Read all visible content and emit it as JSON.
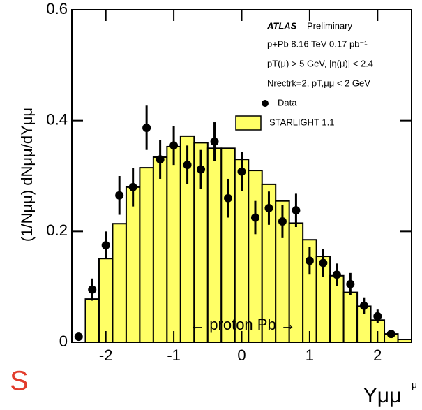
{
  "chart_data": {
    "type": "histogram",
    "y_label": "(1/Nμμ) dNμμ/dYμμ",
    "x_label": "Yμμ",
    "x_label_fragment": "μ",
    "logo_fragment": "S",
    "annotations": [
      "ATLAS",
      "Preliminary",
      "p+Pb 8.16 TeV 0.17 pb⁻¹",
      "pT(μ) > 5 GeV, |η(μ)| < 2.4",
      "Nrectrk=2, pT,μμ < 2 GeV",
      "← proton   Pb →"
    ],
    "bins": [
      -2.5,
      -2.3,
      -2.1,
      -1.9,
      -1.7,
      -1.5,
      -1.3,
      -1.1,
      -0.9,
      -0.7,
      -0.5,
      -0.3,
      -0.1,
      0.1,
      0.3,
      0.5,
      0.7,
      0.9,
      1.1,
      1.3,
      1.5,
      1.7,
      1.9,
      2.1,
      2.3,
      2.5
    ],
    "series": [
      {
        "name": "STARLIGHT 1.1",
        "type": "histogram",
        "color": "#ffff66",
        "values": [
          0,
          0.078,
          0.151,
          0.214,
          0.28,
          0.315,
          0.334,
          0.353,
          0.372,
          0.36,
          0.35,
          0.35,
          0.33,
          0.31,
          0.285,
          0.255,
          0.215,
          0.185,
          0.155,
          0.12,
          0.09,
          0.065,
          0.04,
          0.015,
          0.005
        ]
      },
      {
        "name": "Data",
        "type": "scatter",
        "color": "#000000",
        "x": [
          -2.4,
          -2.2,
          -2.0,
          -1.8,
          -1.6,
          -1.4,
          -1.2,
          -1.0,
          -0.8,
          -0.6,
          -0.4,
          -0.2,
          0.0,
          0.2,
          0.4,
          0.6,
          0.8,
          1.0,
          1.2,
          1.4,
          1.6,
          1.8,
          2.0,
          2.2
        ],
        "values": [
          0.01,
          0.095,
          0.175,
          0.265,
          0.28,
          0.387,
          0.33,
          0.355,
          0.32,
          0.312,
          0.362,
          0.26,
          0.308,
          0.225,
          0.242,
          0.218,
          0.238,
          0.147,
          0.143,
          0.122,
          0.105,
          0.066,
          0.047,
          0.015
        ],
        "errors": [
          0.005,
          0.02,
          0.025,
          0.035,
          0.035,
          0.04,
          0.035,
          0.035,
          0.035,
          0.035,
          0.035,
          0.035,
          0.035,
          0.03,
          0.03,
          0.03,
          0.03,
          0.025,
          0.025,
          0.02,
          0.02,
          0.015,
          0.012,
          0.007
        ]
      }
    ],
    "xlim": [
      -2.5,
      2.5
    ],
    "ylim": [
      0,
      0.6
    ],
    "xticks": [
      -2,
      -1,
      0,
      1,
      2
    ],
    "yticks": [
      0,
      0.2,
      0.4,
      0.6
    ]
  }
}
